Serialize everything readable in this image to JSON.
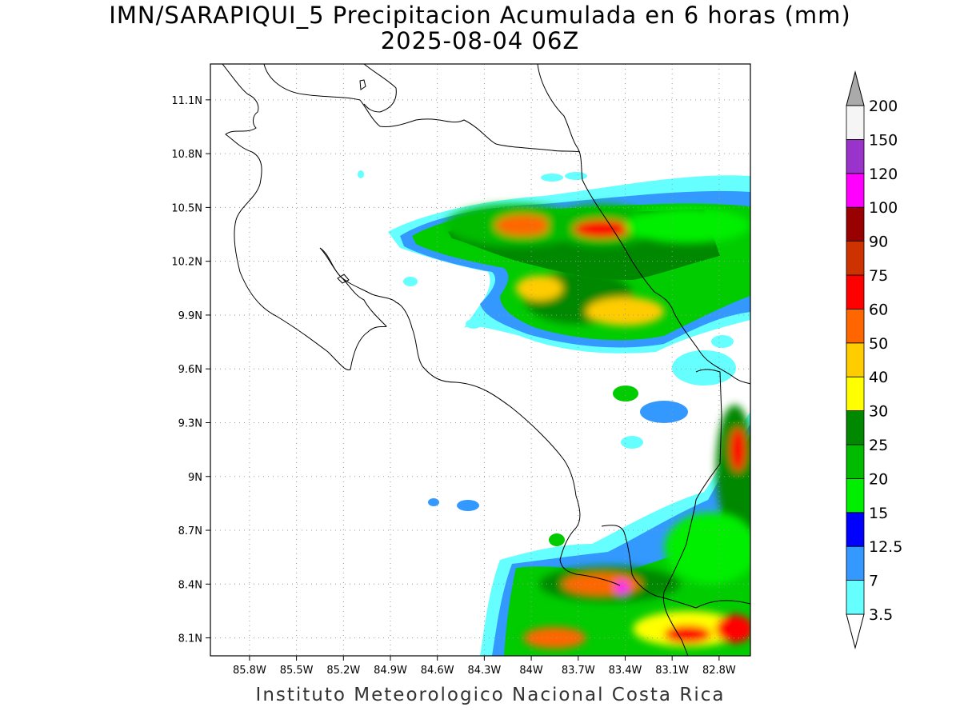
{
  "title_line1": "IMN/SARAPIQUI_5 Precipitacion Acumulada en 6 horas (mm)",
  "title_line2": "2025-08-04 06Z",
  "footer": "Instituto Meteorologico Nacional Costa Rica",
  "map": {
    "lon_range": [
      -86.05,
      -82.6
    ],
    "lat_range": [
      8.0,
      11.3
    ],
    "x_ticks": [
      {
        "value": -85.8,
        "label": "85.8W"
      },
      {
        "value": -85.5,
        "label": "85.5W"
      },
      {
        "value": -85.2,
        "label": "85.2W"
      },
      {
        "value": -84.9,
        "label": "84.9W"
      },
      {
        "value": -84.6,
        "label": "84.6W"
      },
      {
        "value": -84.3,
        "label": "84.3W"
      },
      {
        "value": -84.0,
        "label": "84W"
      },
      {
        "value": -83.7,
        "label": "83.7W"
      },
      {
        "value": -83.4,
        "label": "83.4W"
      },
      {
        "value": -83.1,
        "label": "83.1W"
      },
      {
        "value": -82.8,
        "label": "82.8W"
      }
    ],
    "y_ticks": [
      {
        "value": 11.1,
        "label": "11.1N"
      },
      {
        "value": 10.8,
        "label": "10.8N"
      },
      {
        "value": 10.5,
        "label": "10.5N"
      },
      {
        "value": 10.2,
        "label": "10.2N"
      },
      {
        "value": 9.9,
        "label": "9.9N"
      },
      {
        "value": 9.6,
        "label": "9.6N"
      },
      {
        "value": 9.3,
        "label": "9.3N"
      },
      {
        "value": 9.0,
        "label": "9N"
      },
      {
        "value": 8.7,
        "label": "8.7N"
      },
      {
        "value": 8.4,
        "label": "8.4N"
      },
      {
        "value": 8.1,
        "label": "8.1N"
      }
    ],
    "grid": true
  },
  "colorbar": {
    "levels": [
      {
        "label": "3.5",
        "color": "#66ffff"
      },
      {
        "label": "7",
        "color": "#3399ff"
      },
      {
        "label": "12.5",
        "color": "#0000ff"
      },
      {
        "label": "15",
        "color": "#00ee00"
      },
      {
        "label": "20",
        "color": "#00bb00"
      },
      {
        "label": "25",
        "color": "#008800"
      },
      {
        "label": "30",
        "color": "#ffff00"
      },
      {
        "label": "40",
        "color": "#ffcc00"
      },
      {
        "label": "50",
        "color": "#ff6600"
      },
      {
        "label": "60",
        "color": "#ff0000"
      },
      {
        "label": "75",
        "color": "#cc3300"
      },
      {
        "label": "90",
        "color": "#990000"
      },
      {
        "label": "100",
        "color": "#ff00ff"
      },
      {
        "label": "120",
        "color": "#9933cc"
      },
      {
        "label": "150",
        "color": "#f5f5f5"
      },
      {
        "label": "200",
        "color": "#aaaaaa"
      }
    ]
  },
  "precip_cells": [
    {
      "lon": -84.1,
      "lat": 10.4,
      "rx": 0.45,
      "ry": 0.12,
      "level": 4
    },
    {
      "lon": -84.05,
      "lat": 10.4,
      "rx": 0.18,
      "ry": 0.06,
      "level": 8
    },
    {
      "lon": -83.55,
      "lat": 10.4,
      "rx": 0.35,
      "ry": 0.12,
      "level": 4
    },
    {
      "lon": -83.55,
      "lat": 10.38,
      "rx": 0.18,
      "ry": 0.05,
      "level": 9
    },
    {
      "lon": -83.0,
      "lat": 10.4,
      "rx": 0.4,
      "ry": 0.1,
      "level": 3
    },
    {
      "lon": -83.7,
      "lat": 10.0,
      "rx": 0.35,
      "ry": 0.15,
      "level": 5
    },
    {
      "lon": -83.4,
      "lat": 9.92,
      "rx": 0.25,
      "ry": 0.08,
      "level": 7
    },
    {
      "lon": -83.95,
      "lat": 10.05,
      "rx": 0.15,
      "ry": 0.07,
      "level": 7
    },
    {
      "lon": -82.7,
      "lat": 9.05,
      "rx": 0.12,
      "ry": 0.35,
      "level": 5
    },
    {
      "lon": -82.68,
      "lat": 9.15,
      "rx": 0.05,
      "ry": 0.12,
      "level": 9
    },
    {
      "lon": -82.85,
      "lat": 8.6,
      "rx": 0.3,
      "ry": 0.2,
      "level": 3
    },
    {
      "lon": -83.5,
      "lat": 8.4,
      "rx": 0.45,
      "ry": 0.1,
      "level": 5
    },
    {
      "lon": -83.55,
      "lat": 8.4,
      "rx": 0.25,
      "ry": 0.06,
      "level": 8
    },
    {
      "lon": -83.42,
      "lat": 8.38,
      "rx": 0.04,
      "ry": 0.04,
      "level": 12
    },
    {
      "lon": -83.0,
      "lat": 8.15,
      "rx": 0.35,
      "ry": 0.1,
      "level": 6
    },
    {
      "lon": -83.0,
      "lat": 8.12,
      "rx": 0.15,
      "ry": 0.05,
      "level": 9
    },
    {
      "lon": -82.7,
      "lat": 8.15,
      "rx": 0.12,
      "ry": 0.08,
      "level": 9
    },
    {
      "lon": -83.85,
      "lat": 8.1,
      "rx": 0.2,
      "ry": 0.06,
      "level": 8
    }
  ]
}
